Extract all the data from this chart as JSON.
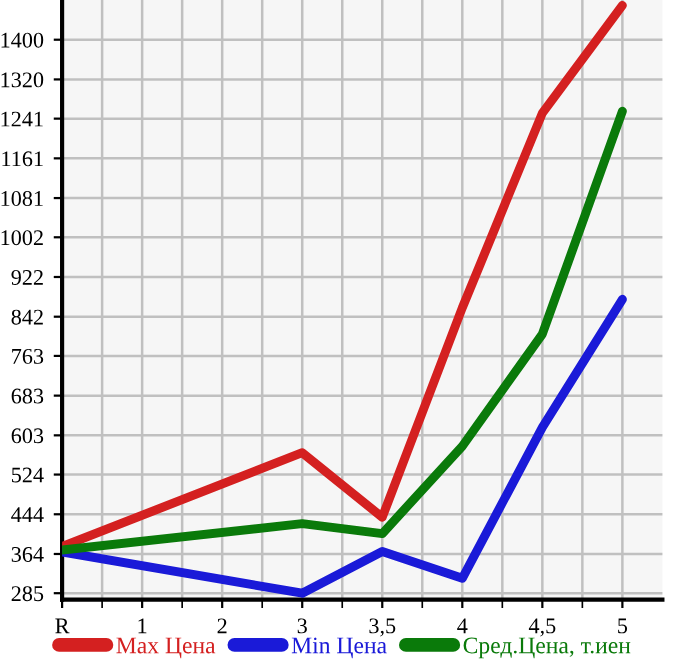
{
  "chart_data": {
    "type": "line",
    "categories": [
      "R",
      "1",
      "2",
      "3",
      "3,5",
      "4",
      "4,5",
      "5"
    ],
    "series": [
      {
        "name": "Max Цена",
        "color": "#d42020",
        "values": [
          379,
          null,
          null,
          568,
          438,
          860,
          1252,
          1469
        ]
      },
      {
        "name": "Min Цена",
        "color": "#1a1ad8",
        "values": [
          368,
          null,
          null,
          285,
          369,
          315,
          619,
          877
        ]
      },
      {
        "name": "Сред.Цена, т.иен",
        "color": "#0a7a0a",
        "values": [
          372,
          null,
          null,
          425,
          405,
          581,
          807,
          1256
        ]
      }
    ],
    "ylim": [
      272,
      1480
    ],
    "yticks": [
      285,
      364,
      444,
      524,
      603,
      683,
      763,
      842,
      922,
      1002,
      1081,
      1161,
      1241,
      1320,
      1400
    ],
    "grid": true,
    "legend": "bottom",
    "marker": "none",
    "line_style": "solid"
  }
}
